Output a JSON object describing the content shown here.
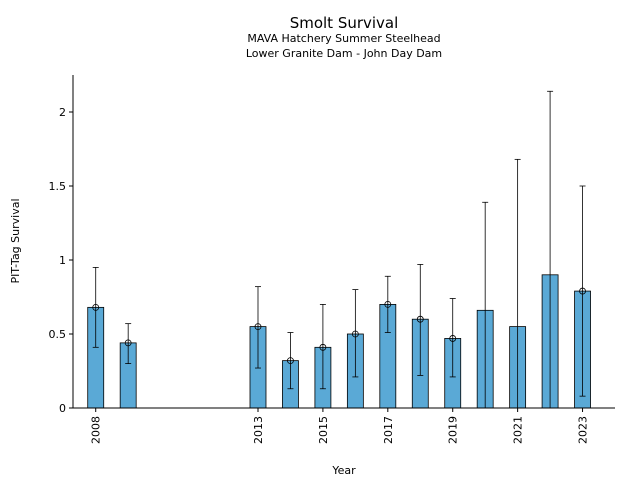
{
  "chart_data": {
    "type": "bar",
    "title": "Smolt Survival",
    "subtitle_lines": [
      "MAVA Hatchery Summer Steelhead",
      "Lower Granite Dam - John Day Dam"
    ],
    "xlabel": "Year",
    "ylabel": "PIT-Tag Survival",
    "xlim": [
      2007.3,
      2024
    ],
    "ylim": [
      0,
      2.25
    ],
    "x_ticks": [
      2008,
      2013,
      2015,
      2017,
      2019,
      2021,
      2023
    ],
    "y_ticks": [
      0,
      0.5,
      1,
      1.5,
      2
    ],
    "y_tick_labels": [
      "0",
      "0.5",
      "1",
      "1.5",
      "2"
    ],
    "grid": false,
    "bar_color": "#5aa9d6",
    "bars": [
      {
        "year": 2008,
        "value": 0.68,
        "lower": 0.41,
        "upper": 0.95,
        "marker": true
      },
      {
        "year": 2009,
        "value": 0.44,
        "lower": 0.3,
        "upper": 0.57,
        "marker": true
      },
      {
        "year": 2013,
        "value": 0.55,
        "lower": 0.27,
        "upper": 0.82,
        "marker": true
      },
      {
        "year": 2014,
        "value": 0.32,
        "lower": 0.13,
        "upper": 0.51,
        "marker": true
      },
      {
        "year": 2015,
        "value": 0.41,
        "lower": 0.13,
        "upper": 0.7,
        "marker": true
      },
      {
        "year": 2016,
        "value": 0.5,
        "lower": 0.21,
        "upper": 0.8,
        "marker": true
      },
      {
        "year": 2017,
        "value": 0.7,
        "lower": 0.51,
        "upper": 0.89,
        "marker": true
      },
      {
        "year": 2018,
        "value": 0.6,
        "lower": 0.22,
        "upper": 0.97,
        "marker": true
      },
      {
        "year": 2019,
        "value": 0.47,
        "lower": 0.21,
        "upper": 0.74,
        "marker": true
      },
      {
        "year": 2020,
        "value": 0.66,
        "lower": 0.0,
        "upper": 1.39,
        "marker": false
      },
      {
        "year": 2021,
        "value": 0.55,
        "lower": 0.0,
        "upper": 1.68,
        "marker": false
      },
      {
        "year": 2022,
        "value": 0.9,
        "lower": 0.0,
        "upper": 2.14,
        "marker": false
      },
      {
        "year": 2023,
        "value": 0.79,
        "lower": 0.08,
        "upper": 1.5,
        "marker": true
      }
    ]
  }
}
